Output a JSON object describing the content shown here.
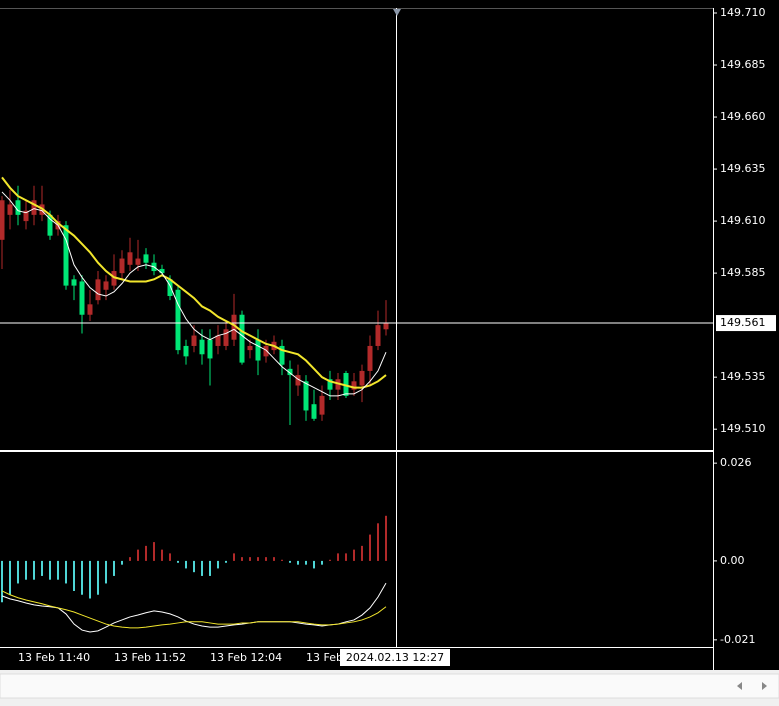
{
  "chart_data": [
    {
      "type": "candlestick",
      "categories": [
        null,
        null,
        "13 Feb 11:40",
        null,
        null,
        null,
        null,
        null,
        null,
        null,
        null,
        null,
        null,
        null,
        "13 Feb 11:52",
        null,
        null,
        null,
        null,
        null,
        null,
        null,
        null,
        null,
        null,
        null,
        "13 Feb 12:04",
        null,
        null,
        null,
        null,
        null,
        null,
        null,
        null,
        null,
        null,
        null,
        "13 Feb",
        null,
        null,
        null,
        null,
        null,
        null,
        null,
        null,
        null,
        null
      ],
      "open": [
        149.601,
        149.613,
        149.62,
        149.61,
        149.613,
        149.613,
        149.613,
        149.606,
        149.608,
        149.582,
        149.581,
        149.565,
        149.572,
        149.577,
        149.579,
        149.585,
        149.589,
        149.589,
        149.594,
        149.59,
        149.587,
        149.582,
        149.577,
        149.55,
        149.55,
        149.553,
        149.553,
        149.55,
        149.55,
        149.553,
        149.565,
        149.548,
        149.553,
        149.545,
        149.548,
        149.55,
        149.539,
        149.531,
        149.533,
        149.522,
        149.517,
        149.534,
        149.529,
        149.537,
        149.529,
        149.531,
        149.538,
        149.55,
        149.558
      ],
      "high": [
        149.622,
        149.625,
        149.627,
        149.62,
        149.627,
        149.627,
        149.615,
        149.613,
        149.61,
        149.584,
        149.584,
        149.577,
        149.586,
        149.584,
        149.594,
        149.596,
        149.602,
        149.601,
        149.597,
        149.594,
        149.589,
        149.584,
        149.579,
        149.553,
        149.56,
        149.558,
        149.558,
        149.56,
        149.562,
        149.575,
        149.567,
        149.553,
        149.558,
        149.553,
        149.555,
        149.553,
        149.543,
        149.541,
        149.536,
        149.529,
        149.531,
        149.538,
        149.537,
        149.538,
        149.537,
        149.541,
        149.555,
        149.567,
        149.572
      ],
      "low": [
        149.587,
        149.606,
        149.608,
        149.606,
        149.608,
        149.61,
        149.601,
        149.603,
        149.577,
        149.572,
        149.556,
        149.562,
        149.57,
        149.572,
        149.577,
        149.582,
        149.586,
        149.586,
        149.587,
        149.584,
        149.584,
        149.572,
        149.546,
        149.541,
        149.547,
        149.541,
        149.531,
        149.546,
        149.548,
        149.55,
        149.541,
        149.544,
        149.536,
        149.542,
        149.546,
        149.536,
        149.512,
        149.526,
        149.514,
        149.514,
        149.514,
        149.524,
        149.524,
        149.525,
        149.526,
        149.523,
        149.531,
        149.548,
        149.555
      ],
      "close": [
        149.62,
        149.618,
        149.613,
        149.615,
        149.62,
        149.618,
        149.603,
        149.61,
        149.579,
        149.579,
        149.565,
        149.57,
        149.582,
        149.581,
        149.586,
        149.592,
        149.595,
        149.592,
        149.59,
        149.586,
        149.585,
        149.574,
        149.548,
        149.545,
        149.555,
        149.546,
        149.544,
        149.555,
        149.558,
        149.565,
        149.542,
        149.55,
        149.543,
        149.55,
        149.552,
        149.541,
        149.536,
        149.536,
        149.519,
        149.515,
        149.526,
        149.529,
        149.534,
        149.526,
        149.533,
        149.538,
        149.55,
        149.56,
        149.561
      ],
      "up_color": "#b22a2a",
      "down_color": "#00e676",
      "series": [
        {
          "color": "#f2e62c",
          "values": [
            149.631,
            149.626,
            149.622,
            149.62,
            149.618,
            149.616,
            149.613,
            149.609,
            149.606,
            149.603,
            149.599,
            149.595,
            149.59,
            149.586,
            149.583,
            149.582,
            149.581,
            149.581,
            149.581,
            149.582,
            149.584,
            149.582,
            149.579,
            149.576,
            149.573,
            149.569,
            149.567,
            149.564,
            149.562,
            149.56,
            149.557,
            149.555,
            149.553,
            149.551,
            149.55,
            149.548,
            149.547,
            149.546,
            149.543,
            149.539,
            149.535,
            149.533,
            149.532,
            149.531,
            149.53,
            149.53,
            149.531,
            149.533,
            149.536
          ]
        },
        {
          "color": "#ffffff",
          "values": [
            149.624,
            149.62,
            149.615,
            149.614,
            149.616,
            149.615,
            149.611,
            149.608,
            149.601,
            149.589,
            149.583,
            149.578,
            149.575,
            149.574,
            149.576,
            149.58,
            149.585,
            149.588,
            149.589,
            149.588,
            149.585,
            149.579,
            149.57,
            149.563,
            149.558,
            149.555,
            149.553,
            149.555,
            149.556,
            149.558,
            149.555,
            149.552,
            149.55,
            149.548,
            149.544,
            149.54,
            149.537,
            149.534,
            149.532,
            149.53,
            149.528,
            149.526,
            149.526,
            149.527,
            149.527,
            149.529,
            149.533,
            149.538,
            149.547
          ]
        }
      ],
      "ylim": [
        149.5,
        149.7124
      ],
      "yticks": [
        {
          "value": 149.71,
          "label": "149.710"
        },
        149.685,
        {
          "value": 149.66,
          "label": "149.660"
        },
        149.635,
        {
          "value": 149.61,
          "label": "149.610"
        },
        149.585,
        149.535,
        {
          "value": 149.51,
          "label": "149.510"
        }
      ],
      "current_price": 149.561,
      "crosshair_time": "2024.02.13 12:27"
    },
    {
      "type": "oscillator",
      "values": [
        -0.011,
        -0.009,
        -0.006,
        -0.005,
        -0.005,
        -0.004,
        -0.005,
        -0.005,
        -0.006,
        -0.008,
        -0.009,
        -0.01,
        -0.009,
        -0.006,
        -0.004,
        -0.001,
        0.001,
        0.003,
        0.004,
        0.005,
        0.003,
        0.002,
        -0.0005,
        -0.002,
        -0.003,
        -0.004,
        -0.004,
        -0.002,
        -0.0005,
        0.002,
        0.001,
        0.001,
        0.001,
        0.001,
        0.001,
        0.0003,
        -0.0005,
        -0.001,
        -0.001,
        -0.002,
        -0.001,
        0.0003,
        0.002,
        0.002,
        0.003,
        0.004,
        0.007,
        0.01,
        0.012
      ],
      "up_color": "#b22a2a",
      "down_color": "#4fd6d6",
      "series": [
        {
          "color": "#ffffff",
          "values": [
            -0.0093,
            -0.0101,
            -0.0106,
            -0.0112,
            -0.0117,
            -0.012,
            -0.0122,
            -0.0125,
            -0.0141,
            -0.0168,
            -0.0184,
            -0.0189,
            -0.0186,
            -0.0176,
            -0.0165,
            -0.0157,
            -0.0149,
            -0.0144,
            -0.0138,
            -0.0133,
            -0.0136,
            -0.0141,
            -0.0149,
            -0.016,
            -0.0168,
            -0.0173,
            -0.0176,
            -0.0176,
            -0.0173,
            -0.017,
            -0.0168,
            -0.0165,
            -0.0162,
            -0.0162,
            -0.0162,
            -0.0162,
            -0.0162,
            -0.0165,
            -0.0168,
            -0.017,
            -0.0173,
            -0.017,
            -0.0168,
            -0.0162,
            -0.0157,
            -0.0144,
            -0.0125,
            -0.0096,
            -0.0059
          ]
        },
        {
          "color": "#f2e62c",
          "values": [
            -0.008,
            -0.009,
            -0.0098,
            -0.0104,
            -0.0109,
            -0.0114,
            -0.012,
            -0.0125,
            -0.013,
            -0.0136,
            -0.0144,
            -0.0152,
            -0.016,
            -0.0168,
            -0.0173,
            -0.0176,
            -0.0178,
            -0.0178,
            -0.0176,
            -0.0173,
            -0.017,
            -0.0168,
            -0.0165,
            -0.0162,
            -0.0162,
            -0.0162,
            -0.0165,
            -0.0168,
            -0.0168,
            -0.0168,
            -0.0165,
            -0.0165,
            -0.0162,
            -0.0162,
            -0.0162,
            -0.0162,
            -0.0162,
            -0.0162,
            -0.0165,
            -0.0168,
            -0.017,
            -0.017,
            -0.0168,
            -0.0165,
            -0.0162,
            -0.0157,
            -0.0149,
            -0.0138,
            -0.0122
          ]
        }
      ],
      "ylim": [
        -0.0229,
        0.0287
      ],
      "yticks": [
        0.026,
        {
          "value": 0,
          "label": "0.00"
        },
        -0.021
      ]
    }
  ]
}
